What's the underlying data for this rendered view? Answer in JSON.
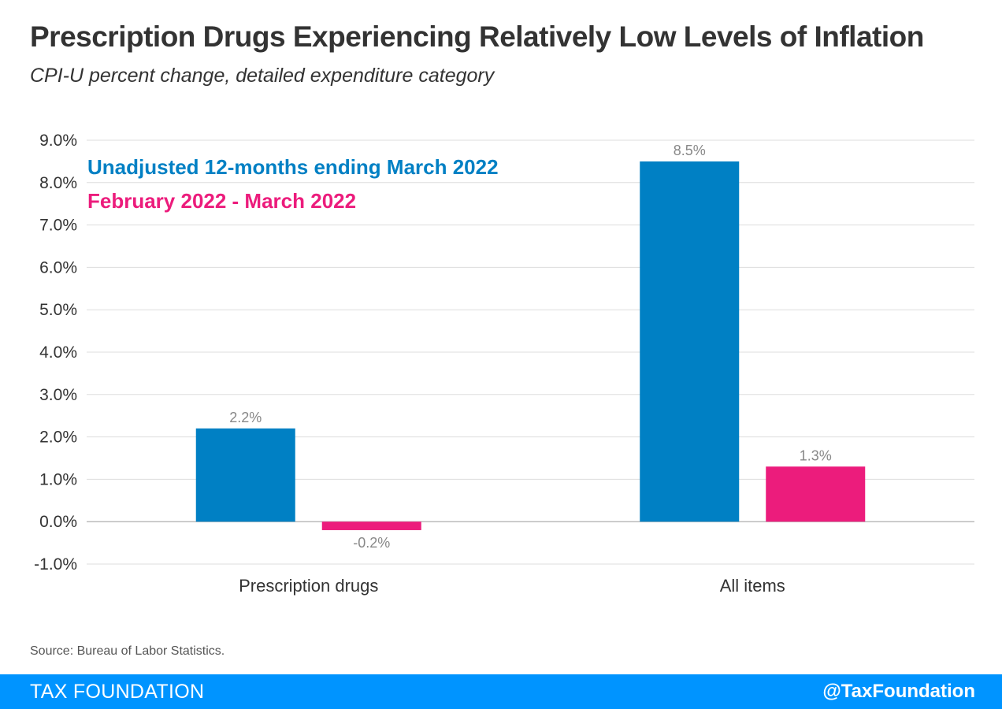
{
  "header": {
    "title": "Prescription Drugs Experiencing Relatively Low Levels of Inflation",
    "subtitle": "CPI-U percent change, detailed expenditure category"
  },
  "chart_data": {
    "type": "bar",
    "categories": [
      "Prescription drugs",
      "All items"
    ],
    "series": [
      {
        "name": "Unadjusted 12-months ending March 2022",
        "values": [
          2.2,
          8.5
        ],
        "labels": [
          "2.2%",
          "8.5%"
        ],
        "color": "#0080c4"
      },
      {
        "name": "February 2022 - March 2022",
        "values": [
          -0.2,
          1.3
        ],
        "labels": [
          "-0.2%",
          "1.3%"
        ],
        "color": "#ec1c7c"
      }
    ],
    "ylim": [
      -1.0,
      9.0
    ],
    "yticks": [
      -1.0,
      0.0,
      1.0,
      2.0,
      3.0,
      4.0,
      5.0,
      6.0,
      7.0,
      8.0,
      9.0
    ],
    "ytick_labels": [
      "-1.0%",
      "0.0%",
      "1.0%",
      "2.0%",
      "3.0%",
      "4.0%",
      "5.0%",
      "6.0%",
      "7.0%",
      "8.0%",
      "9.0%"
    ],
    "xlabel": "",
    "ylabel": "",
    "grid": true,
    "legend_position": "top-left"
  },
  "source": "Source: Bureau of Labor Statistics.",
  "footer": {
    "brand": "TAX FOUNDATION",
    "handle": "@TaxFoundation"
  },
  "colors": {
    "footer_bg": "#0094ff",
    "grid": "#dddddd",
    "zero_line": "#bbbbbb"
  }
}
